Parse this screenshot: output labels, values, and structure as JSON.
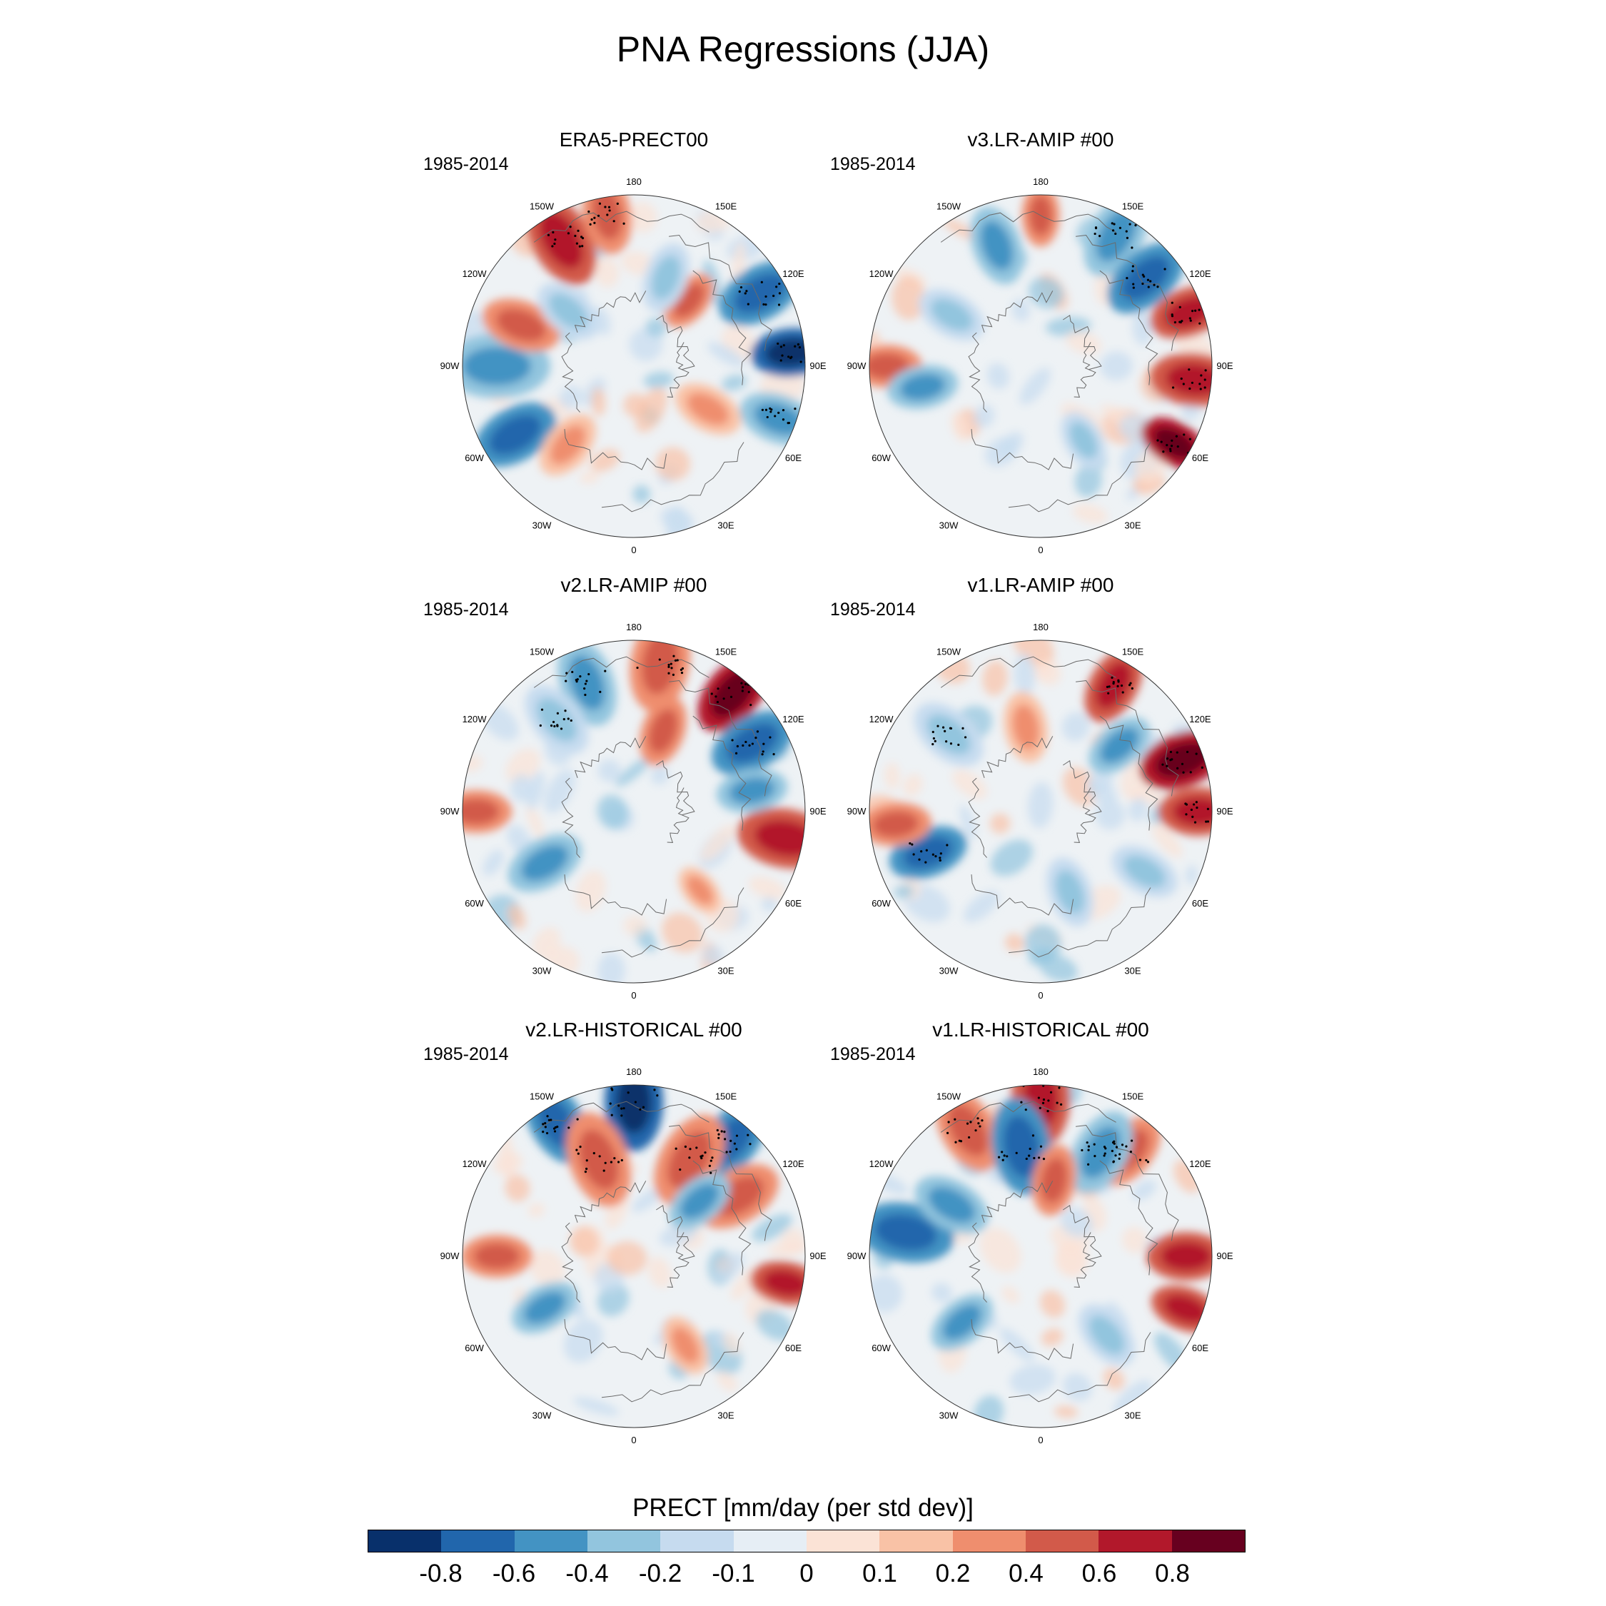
{
  "title": "PNA Regressions (JJA)",
  "panels": [
    {
      "title": "ERA5-PRECT00",
      "period": "1985-2014"
    },
    {
      "title": "v3.LR-AMIP  #00",
      "period": "1985-2014"
    },
    {
      "title": "v2.LR-AMIP  #00",
      "period": "1985-2014"
    },
    {
      "title": "v1.LR-AMIP  #00",
      "period": "1985-2014"
    },
    {
      "title": "v2.LR-HISTORICAL  #00",
      "period": "1985-2014"
    },
    {
      "title": "v1.LR-HISTORICAL  #00",
      "period": "1985-2014"
    }
  ],
  "longitude_labels": [
    "180",
    "150E",
    "120E",
    "90E",
    "60E",
    "30E",
    "0",
    "30W",
    "60W",
    "90W",
    "120W",
    "150W"
  ],
  "colorbar": {
    "title": "PRECT [mm/day (per std dev)]",
    "tick_labels": [
      "-0.8",
      "-0.6",
      "-0.4",
      "-0.2",
      "-0.1",
      "0",
      "0.1",
      "0.2",
      "0.4",
      "0.6",
      "0.8"
    ],
    "colors": [
      "#08306b",
      "#2166ac",
      "#4393c3",
      "#92c5de",
      "#c6dbef",
      "#e6eef5",
      "#fbe3d6",
      "#f9c2a6",
      "#ef8e6e",
      "#d25a4a",
      "#b2182b",
      "#67001f"
    ]
  }
}
